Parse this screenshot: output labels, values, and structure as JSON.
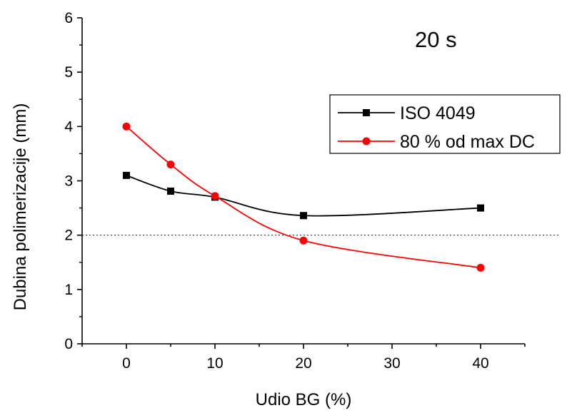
{
  "chart_data": {
    "type": "line",
    "annotation": "20 s",
    "xlabel": "Udio BG (%)",
    "ylabel": "Dubina polimerizacije (mm)",
    "xlim": [
      -5,
      45
    ],
    "ylim": [
      0,
      6
    ],
    "x_ticks": [
      "0",
      "10",
      "20",
      "30",
      "40"
    ],
    "y_ticks": [
      "0",
      "1",
      "2",
      "3",
      "4",
      "5",
      "6"
    ],
    "reference_line": {
      "y": 2,
      "style": "dotted"
    },
    "grid": false,
    "legend_position": "top-right",
    "series": [
      {
        "name": "ISO 4049",
        "color": "#000000",
        "marker": "square",
        "x": [
          0,
          5,
          10,
          20,
          40
        ],
        "y": [
          3.1,
          2.81,
          2.7,
          2.36,
          2.5
        ]
      },
      {
        "name": "80 % od max DC",
        "color": "#ff0000",
        "marker": "circle",
        "x": [
          0,
          5,
          10,
          20,
          40
        ],
        "y": [
          4.0,
          3.3,
          2.72,
          1.9,
          1.4
        ]
      }
    ]
  }
}
